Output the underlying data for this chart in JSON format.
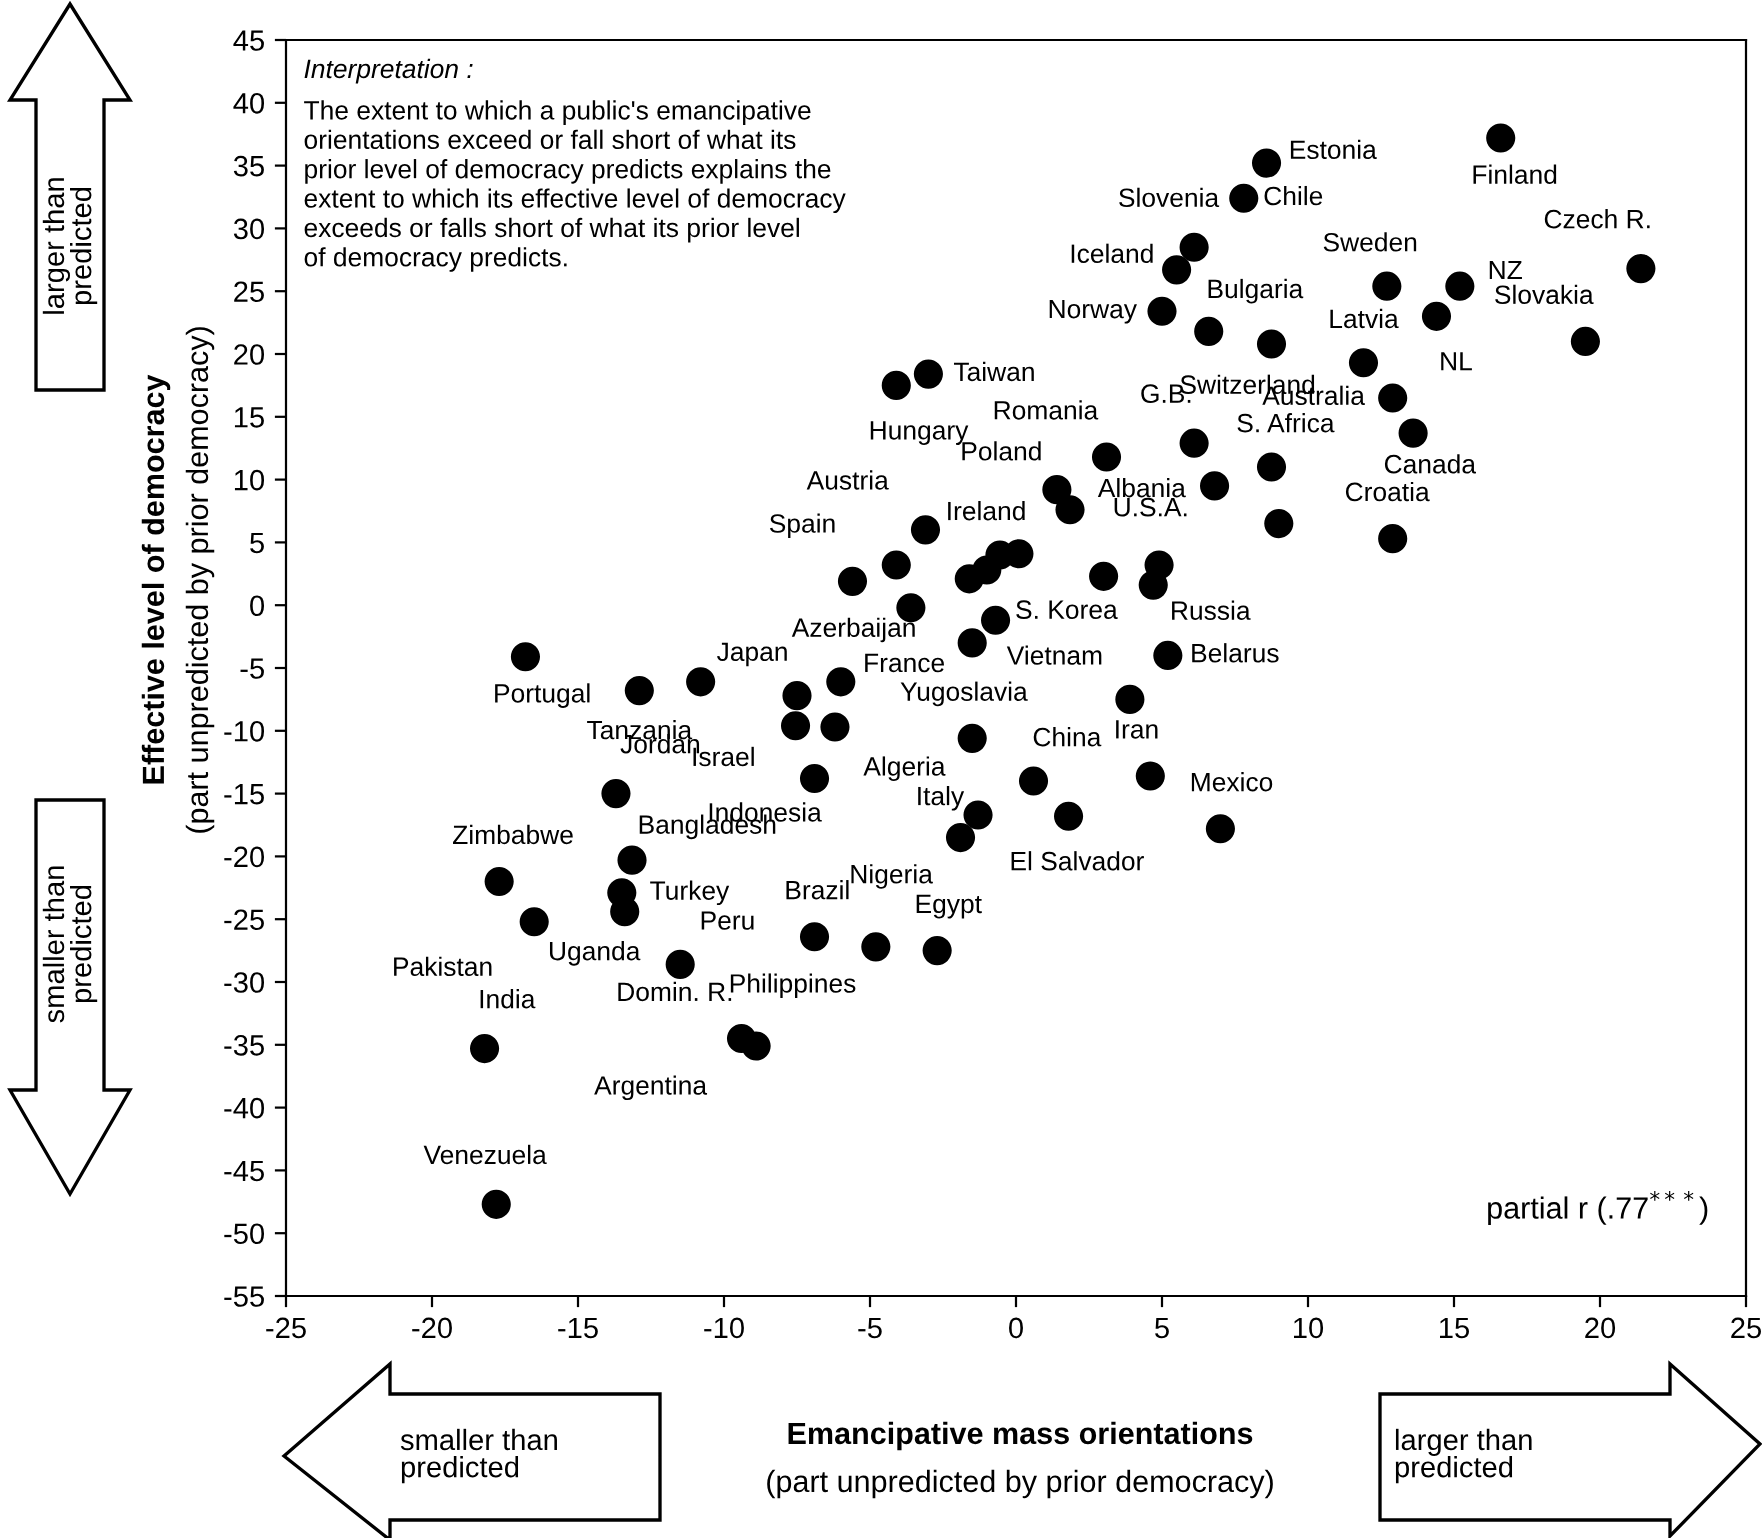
{
  "chart_data": {
    "type": "scatter",
    "xlabel": "Emancipative mass orientations\n(part unpredicted by prior democracy)",
    "ylabel": "Effective level of democracy\n(part unpredicted by prior democracy)",
    "xlim": [
      -25,
      25
    ],
    "xticks": [
      -25,
      -20,
      -15,
      -10,
      -5,
      0,
      5,
      10,
      15,
      20,
      25
    ],
    "ylim": [
      -55,
      45
    ],
    "yticks": [
      -55,
      -50,
      -45,
      -40,
      -35,
      -30,
      -25,
      -20,
      -15,
      -10,
      -5,
      0,
      5,
      10,
      15,
      20,
      25,
      30,
      35,
      40,
      45
    ],
    "grid": false,
    "marker": "circle",
    "annotations": [
      "Interpretation :",
      "The extent to which a public's emancipative\norientations exceed or fall short of what its\nprior level of democracy predicts explains the\nextent to which its effective level of democracy\nexceeds or falls short of what its prior level\nof democracy predicts.",
      "partial r (.77$^{***}$)",
      "larger than\npredicted",
      "smaller than\npredicted",
      "smaller than\npredicted",
      "larger than\npredicted"
    ],
    "series": [
      {
        "color": "#000000",
        "x": [
          8.58,
          16.6,
          7.8,
          6.1,
          5.5,
          21.4,
          12.7,
          15.2,
          14.4,
          5.0,
          6.6,
          8.75,
          11.9,
          19.5,
          12.9,
          13.6,
          3.1,
          6.1,
          8.75,
          1.4,
          1.85,
          6.8,
          12.9,
          9.0,
          4.9,
          4.7,
          3.0,
          5.2,
          0.1,
          -4.1,
          -3.0,
          -3.1,
          -0.55,
          -5.6,
          -4.1,
          -3.6,
          -1.6,
          -1.0,
          -0.7,
          -1.5,
          -16.8,
          -12.9,
          -10.8,
          -7.5,
          -6.0,
          -7.55,
          -6.2,
          -1.5,
          -13.7,
          -6.9,
          -1.3,
          -1.9,
          -17.7,
          -13.15,
          -13.5,
          -13.4,
          -16.5,
          -11.5,
          -6.9,
          -4.8,
          -2.7,
          -18.2,
          -9.4,
          -8.9,
          -17.8,
          3.9,
          0.6,
          4.6,
          1.8,
          7.0
        ],
        "values": [
          35.2,
          37.2,
          32.4,
          28.5,
          26.7,
          26.8,
          25.4,
          25.4,
          23.0,
          23.4,
          21.8,
          20.8,
          19.3,
          21.0,
          16.5,
          13.7,
          11.8,
          12.9,
          11.0,
          9.2,
          7.6,
          9.5,
          5.3,
          6.5,
          3.2,
          1.6,
          2.3,
          -4.0,
          4.1,
          17.5,
          18.4,
          6.0,
          4.0,
          1.9,
          3.2,
          -0.2,
          2.1,
          2.8,
          -1.2,
          -3.0,
          -4.1,
          -6.8,
          -6.1,
          -7.2,
          -6.1,
          -9.6,
          -9.7,
          -10.6,
          -15.0,
          -13.8,
          -16.7,
          -18.5,
          -22.0,
          -20.3,
          -22.9,
          -24.4,
          -25.2,
          -28.6,
          -26.4,
          -27.2,
          -27.5,
          -35.3,
          -34.5,
          -35.1,
          -47.7,
          -7.5,
          -14.0,
          -13.6,
          -16.8,
          -17.8
        ],
        "value_labels": [
          "Estonia",
          "Finland",
          "Chile",
          "Slovenia",
          "Iceland",
          "Czech R.",
          "Sweden",
          "NZ",
          "NL",
          "Norway",
          "Switzerland",
          "Bulgaria",
          "Latvia",
          "Slovakia",
          "Australia",
          "Canada",
          "Romania",
          "G.B.",
          "S. Africa",
          "Poland",
          "Albania",
          null,
          "Croatia",
          null,
          "U.S.A.",
          "Russia",
          null,
          "Belarus",
          null,
          "Hungary",
          "Taiwan",
          "Austria",
          "Ireland",
          "Spain",
          null,
          "Azerbaijan",
          null,
          null,
          "S. Korea",
          null,
          "Portugal",
          "Tanzania",
          null,
          "Japan",
          "France",
          "Israel",
          "Algeria",
          "Yugoslavia",
          "Jordan",
          "Indonesia",
          "Italy",
          "Nigeria",
          "Zimbabwe",
          "Bangladesh",
          "Turkey",
          "Uganda",
          "Pakistan",
          "Peru",
          "Brazil",
          "Philippines",
          "Egypt",
          "India",
          "Domin. R.",
          "Argentina",
          "Venezuela",
          "Vietnam",
          "China",
          "Iran",
          "El Salvador",
          "Mexico"
        ]
      }
    ]
  }
}
